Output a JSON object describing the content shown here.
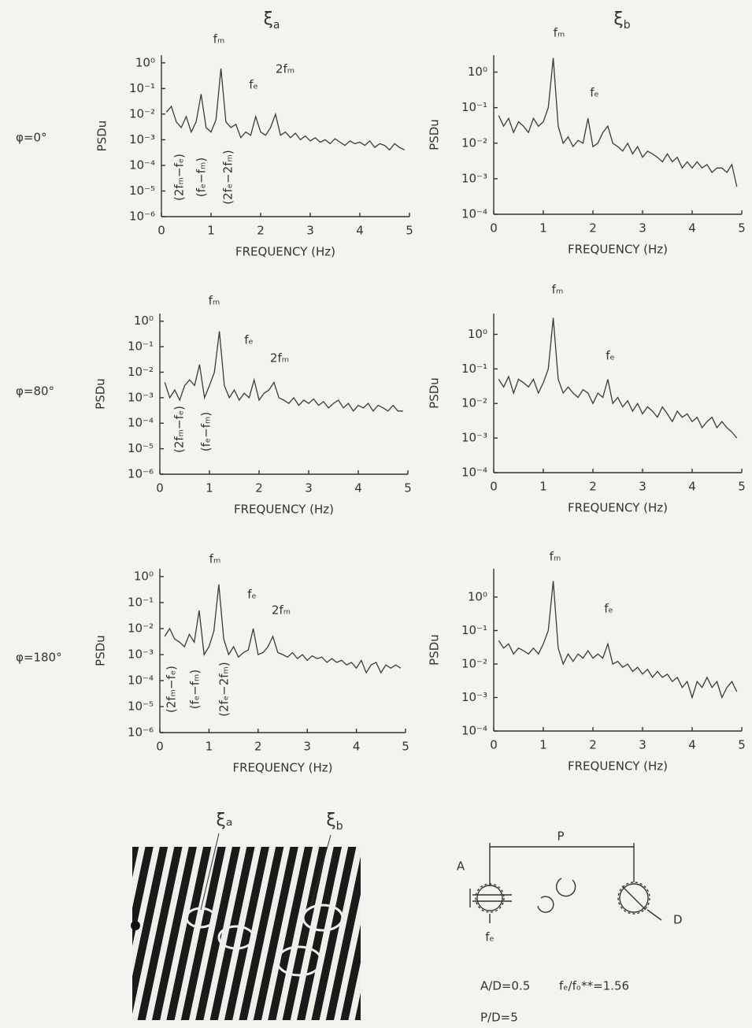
{
  "columns": [
    {
      "symbol": "ξ",
      "sub": "a"
    },
    {
      "symbol": "ξ",
      "sub": "b"
    }
  ],
  "rows": [
    "φ=0°",
    "φ=80°",
    "φ=180°"
  ],
  "chart_data": [
    {
      "type": "line",
      "x_label": "FREQUENCY (Hz)",
      "y_label": "PSDu",
      "log_y": true,
      "x": [
        0.1,
        0.2,
        0.3,
        0.4,
        0.5,
        0.6,
        0.7,
        0.8,
        0.9,
        1.0,
        1.1,
        1.2,
        1.3,
        1.4,
        1.5,
        1.6,
        1.7,
        1.8,
        1.9,
        2.0,
        2.1,
        2.2,
        2.3,
        2.4,
        2.5,
        2.6,
        2.7,
        2.8,
        2.9,
        3.0,
        3.1,
        3.2,
        3.3,
        3.4,
        3.5,
        3.6,
        3.7,
        3.8,
        3.9,
        4.0,
        4.1,
        4.2,
        4.3,
        4.4,
        4.5,
        4.6,
        4.7,
        4.8,
        4.9
      ],
      "series": [
        {
          "color": "#3a3a3a",
          "values": [
            0.012,
            0.02,
            0.005,
            0.003,
            0.008,
            0.002,
            0.005,
            0.06,
            0.003,
            0.002,
            0.006,
            0.6,
            0.005,
            0.003,
            0.004,
            0.0012,
            0.002,
            0.0015,
            0.008,
            0.002,
            0.0015,
            0.003,
            0.01,
            0.0015,
            0.002,
            0.0012,
            0.0018,
            0.001,
            0.0014,
            0.0009,
            0.0012,
            0.0008,
            0.001,
            0.0007,
            0.0011,
            0.0008,
            0.0006,
            0.0009,
            0.0007,
            0.0008,
            0.0006,
            0.0009,
            0.0005,
            0.0007,
            0.0006,
            0.0004,
            0.0007,
            0.0005,
            0.0004
          ]
        }
      ],
      "xlim": [
        0,
        5
      ],
      "xticks": [
        0,
        1,
        2,
        3,
        4,
        5
      ],
      "ylim": [
        1e-06,
        2
      ],
      "yticks": [
        {
          "value": 1,
          "label": "10⁰"
        },
        {
          "value": 0.1,
          "label": "10⁻¹"
        },
        {
          "value": 0.01,
          "label": "10⁻²"
        },
        {
          "value": 0.001,
          "label": "10⁻³"
        },
        {
          "value": 0.0001,
          "label": "10⁻⁴"
        },
        {
          "value": 1e-05,
          "label": "10⁻⁵"
        },
        {
          "value": 1e-06,
          "label": "10⁻⁶"
        }
      ],
      "annotations": [
        "fₘ",
        "fₑ",
        "2fₘ",
        "(2fₘ−fₑ)",
        "(fₑ−fₘ)",
        "(2fₑ−2fₘ)"
      ]
    },
    {
      "type": "line",
      "x_label": "FREQUENCY (Hz)",
      "y_label": "PSDu",
      "log_y": true,
      "x": [
        0.1,
        0.2,
        0.3,
        0.4,
        0.5,
        0.6,
        0.7,
        0.8,
        0.9,
        1.0,
        1.1,
        1.2,
        1.3,
        1.4,
        1.5,
        1.6,
        1.7,
        1.8,
        1.9,
        2.0,
        2.1,
        2.2,
        2.3,
        2.4,
        2.5,
        2.6,
        2.7,
        2.8,
        2.9,
        3.0,
        3.1,
        3.2,
        3.3,
        3.4,
        3.5,
        3.6,
        3.7,
        3.8,
        3.9,
        4.0,
        4.1,
        4.2,
        4.3,
        4.4,
        4.5,
        4.6,
        4.7,
        4.8,
        4.9
      ],
      "series": [
        {
          "color": "#3a3a3a",
          "values": [
            0.06,
            0.03,
            0.05,
            0.02,
            0.04,
            0.03,
            0.02,
            0.05,
            0.03,
            0.04,
            0.1,
            2.5,
            0.03,
            0.01,
            0.015,
            0.008,
            0.012,
            0.01,
            0.05,
            0.008,
            0.01,
            0.02,
            0.03,
            0.01,
            0.008,
            0.006,
            0.01,
            0.005,
            0.008,
            0.004,
            0.006,
            0.005,
            0.004,
            0.003,
            0.005,
            0.003,
            0.004,
            0.002,
            0.003,
            0.002,
            0.003,
            0.002,
            0.0025,
            0.0015,
            0.002,
            0.002,
            0.0015,
            0.0025,
            0.0006
          ]
        }
      ],
      "xlim": [
        0,
        5
      ],
      "xticks": [
        0,
        1,
        2,
        3,
        4,
        5
      ],
      "ylim": [
        0.0001,
        3
      ],
      "yticks": [
        {
          "value": 1,
          "label": "10⁰"
        },
        {
          "value": 0.1,
          "label": "10⁻¹"
        },
        {
          "value": 0.01,
          "label": "10⁻²"
        },
        {
          "value": 0.001,
          "label": "10⁻³"
        },
        {
          "value": 0.0001,
          "label": "10⁻⁴"
        }
      ],
      "annotations": [
        "fₘ",
        "fₑ"
      ]
    },
    {
      "type": "line",
      "x_label": "FREQUENCY (Hz)",
      "y_label": "PSDu",
      "log_y": true,
      "x": [
        0.1,
        0.2,
        0.3,
        0.4,
        0.5,
        0.6,
        0.7,
        0.8,
        0.9,
        1.0,
        1.1,
        1.2,
        1.3,
        1.4,
        1.5,
        1.6,
        1.7,
        1.8,
        1.9,
        2.0,
        2.1,
        2.2,
        2.3,
        2.4,
        2.5,
        2.6,
        2.7,
        2.8,
        2.9,
        3.0,
        3.1,
        3.2,
        3.3,
        3.4,
        3.5,
        3.6,
        3.7,
        3.8,
        3.9,
        4.0,
        4.1,
        4.2,
        4.3,
        4.4,
        4.5,
        4.6,
        4.7,
        4.8,
        4.9
      ],
      "series": [
        {
          "color": "#3a3a3a",
          "values": [
            0.004,
            0.001,
            0.002,
            0.0008,
            0.003,
            0.005,
            0.003,
            0.02,
            0.001,
            0.003,
            0.01,
            0.4,
            0.003,
            0.001,
            0.002,
            0.0008,
            0.0015,
            0.001,
            0.005,
            0.0008,
            0.0015,
            0.002,
            0.004,
            0.001,
            0.0008,
            0.0006,
            0.001,
            0.0005,
            0.0008,
            0.0006,
            0.0009,
            0.0005,
            0.0007,
            0.0004,
            0.0006,
            0.0008,
            0.0004,
            0.0006,
            0.0003,
            0.0005,
            0.0004,
            0.0006,
            0.0003,
            0.0005,
            0.0004,
            0.0003,
            0.0005,
            0.0003,
            0.0003
          ]
        }
      ],
      "xlim": [
        0,
        5
      ],
      "xticks": [
        0,
        1,
        2,
        3,
        4,
        5
      ],
      "ylim": [
        1e-06,
        2
      ],
      "yticks": [
        {
          "value": 1,
          "label": "10⁰"
        },
        {
          "value": 0.1,
          "label": "10⁻¹"
        },
        {
          "value": 0.01,
          "label": "10⁻²"
        },
        {
          "value": 0.001,
          "label": "10⁻³"
        },
        {
          "value": 0.0001,
          "label": "10⁻⁴"
        },
        {
          "value": 1e-05,
          "label": "10⁻⁵"
        },
        {
          "value": 1e-06,
          "label": "10⁻⁶"
        }
      ],
      "annotations": [
        "fₘ",
        "fₑ",
        "2fₘ",
        "(2fₘ−fₑ)",
        "(fₑ−fₘ)"
      ]
    },
    {
      "type": "line",
      "x_label": "FREQUENCY (Hz)",
      "y_label": "PSDu",
      "log_y": true,
      "x": [
        0.1,
        0.2,
        0.3,
        0.4,
        0.5,
        0.6,
        0.7,
        0.8,
        0.9,
        1.0,
        1.1,
        1.2,
        1.3,
        1.4,
        1.5,
        1.6,
        1.7,
        1.8,
        1.9,
        2.0,
        2.1,
        2.2,
        2.3,
        2.4,
        2.5,
        2.6,
        2.7,
        2.8,
        2.9,
        3.0,
        3.1,
        3.2,
        3.3,
        3.4,
        3.5,
        3.6,
        3.7,
        3.8,
        3.9,
        4.0,
        4.1,
        4.2,
        4.3,
        4.4,
        4.5,
        4.6,
        4.7,
        4.8,
        4.9
      ],
      "series": [
        {
          "color": "#3a3a3a",
          "values": [
            0.05,
            0.03,
            0.06,
            0.02,
            0.05,
            0.04,
            0.03,
            0.05,
            0.02,
            0.04,
            0.1,
            3,
            0.05,
            0.02,
            0.03,
            0.02,
            0.015,
            0.025,
            0.02,
            0.01,
            0.02,
            0.015,
            0.05,
            0.01,
            0.015,
            0.008,
            0.012,
            0.006,
            0.01,
            0.005,
            0.008,
            0.006,
            0.004,
            0.008,
            0.005,
            0.003,
            0.006,
            0.004,
            0.005,
            0.003,
            0.004,
            0.002,
            0.003,
            0.004,
            0.002,
            0.003,
            0.002,
            0.0015,
            0.001
          ]
        }
      ],
      "xlim": [
        0,
        5
      ],
      "xticks": [
        0,
        1,
        2,
        3,
        4,
        5
      ],
      "ylim": [
        0.0001,
        4
      ],
      "yticks": [
        {
          "value": 1,
          "label": "10⁰"
        },
        {
          "value": 0.1,
          "label": "10⁻¹"
        },
        {
          "value": 0.01,
          "label": "10⁻²"
        },
        {
          "value": 0.001,
          "label": "10⁻³"
        },
        {
          "value": 0.0001,
          "label": "10⁻⁴"
        }
      ],
      "annotations": [
        "fₘ",
        "fₑ"
      ]
    },
    {
      "type": "line",
      "x_label": "FREQUENCY (Hz)",
      "y_label": "PSDu",
      "log_y": true,
      "x": [
        0.1,
        0.2,
        0.3,
        0.4,
        0.5,
        0.6,
        0.7,
        0.8,
        0.9,
        1.0,
        1.1,
        1.2,
        1.3,
        1.4,
        1.5,
        1.6,
        1.7,
        1.8,
        1.9,
        2.0,
        2.1,
        2.2,
        2.3,
        2.4,
        2.5,
        2.6,
        2.7,
        2.8,
        2.9,
        3.0,
        3.1,
        3.2,
        3.3,
        3.4,
        3.5,
        3.6,
        3.7,
        3.8,
        3.9,
        4.0,
        4.1,
        4.2,
        4.3,
        4.4,
        4.5,
        4.6,
        4.7,
        4.8,
        4.9
      ],
      "series": [
        {
          "color": "#3a3a3a",
          "values": [
            0.005,
            0.01,
            0.004,
            0.003,
            0.002,
            0.006,
            0.003,
            0.05,
            0.001,
            0.002,
            0.008,
            0.5,
            0.004,
            0.001,
            0.002,
            0.0008,
            0.0012,
            0.0015,
            0.01,
            0.001,
            0.0012,
            0.002,
            0.005,
            0.0012,
            0.001,
            0.0008,
            0.0012,
            0.0007,
            0.001,
            0.0006,
            0.0009,
            0.0007,
            0.0008,
            0.0005,
            0.0007,
            0.0005,
            0.0006,
            0.0004,
            0.0005,
            0.0003,
            0.0006,
            0.0002,
            0.0004,
            0.0005,
            0.0002,
            0.0004,
            0.0003,
            0.0004,
            0.0003
          ]
        }
      ],
      "xlim": [
        0,
        5
      ],
      "xticks": [
        0,
        1,
        2,
        3,
        4,
        5
      ],
      "ylim": [
        1e-06,
        2
      ],
      "yticks": [
        {
          "value": 1,
          "label": "10⁰"
        },
        {
          "value": 0.1,
          "label": "10⁻¹"
        },
        {
          "value": 0.01,
          "label": "10⁻²"
        },
        {
          "value": 0.001,
          "label": "10⁻³"
        },
        {
          "value": 0.0001,
          "label": "10⁻⁴"
        },
        {
          "value": 1e-05,
          "label": "10⁻⁵"
        },
        {
          "value": 1e-06,
          "label": "10⁻⁶"
        }
      ],
      "annotations": [
        "fₘ",
        "fₑ",
        "2fₘ",
        "(2fₘ−fₑ)",
        "(fₑ−fₘ)",
        "(2fₑ−2fₘ)"
      ]
    },
    {
      "type": "line",
      "x_label": "FREQUENCY (Hz)",
      "y_label": "PSDu",
      "log_y": true,
      "x": [
        0.1,
        0.2,
        0.3,
        0.4,
        0.5,
        0.6,
        0.7,
        0.8,
        0.9,
        1.0,
        1.1,
        1.2,
        1.3,
        1.4,
        1.5,
        1.6,
        1.7,
        1.8,
        1.9,
        2.0,
        2.1,
        2.2,
        2.3,
        2.4,
        2.5,
        2.6,
        2.7,
        2.8,
        2.9,
        3.0,
        3.1,
        3.2,
        3.3,
        3.4,
        3.5,
        3.6,
        3.7,
        3.8,
        3.9,
        4.0,
        4.1,
        4.2,
        4.3,
        4.4,
        4.5,
        4.6,
        4.7,
        4.8,
        4.9
      ],
      "series": [
        {
          "color": "#3a3a3a",
          "values": [
            0.05,
            0.03,
            0.04,
            0.02,
            0.03,
            0.025,
            0.02,
            0.03,
            0.02,
            0.04,
            0.1,
            3,
            0.03,
            0.01,
            0.02,
            0.012,
            0.02,
            0.015,
            0.025,
            0.015,
            0.02,
            0.015,
            0.04,
            0.01,
            0.012,
            0.008,
            0.01,
            0.006,
            0.008,
            0.005,
            0.007,
            0.004,
            0.006,
            0.004,
            0.005,
            0.003,
            0.004,
            0.002,
            0.003,
            0.001,
            0.003,
            0.002,
            0.004,
            0.002,
            0.003,
            0.001,
            0.002,
            0.003,
            0.0015
          ]
        }
      ],
      "xlim": [
        0,
        5
      ],
      "xticks": [
        0,
        1,
        2,
        3,
        4,
        5
      ],
      "ylim": [
        0.0001,
        7
      ],
      "yticks": [
        {
          "value": 1,
          "label": "10⁰"
        },
        {
          "value": 0.1,
          "label": "10⁻¹"
        },
        {
          "value": 0.01,
          "label": "10⁻²"
        },
        {
          "value": 0.001,
          "label": "10⁻³"
        },
        {
          "value": 0.0001,
          "label": "10⁻⁴"
        }
      ],
      "annotations": [
        "fₘ",
        "fₑ"
      ]
    }
  ],
  "diagram": {
    "flow_labels": [
      "ξₐ",
      "ξ"
    ],
    "flow_label_b_sub": "b",
    "P": "P",
    "A": "A",
    "D": "D",
    "fe": "fₑ",
    "ratio_a": "A/D=0.5",
    "ratio_f": "fₑ/fₒ**=1.56",
    "ratio_p": "P/D=5"
  }
}
